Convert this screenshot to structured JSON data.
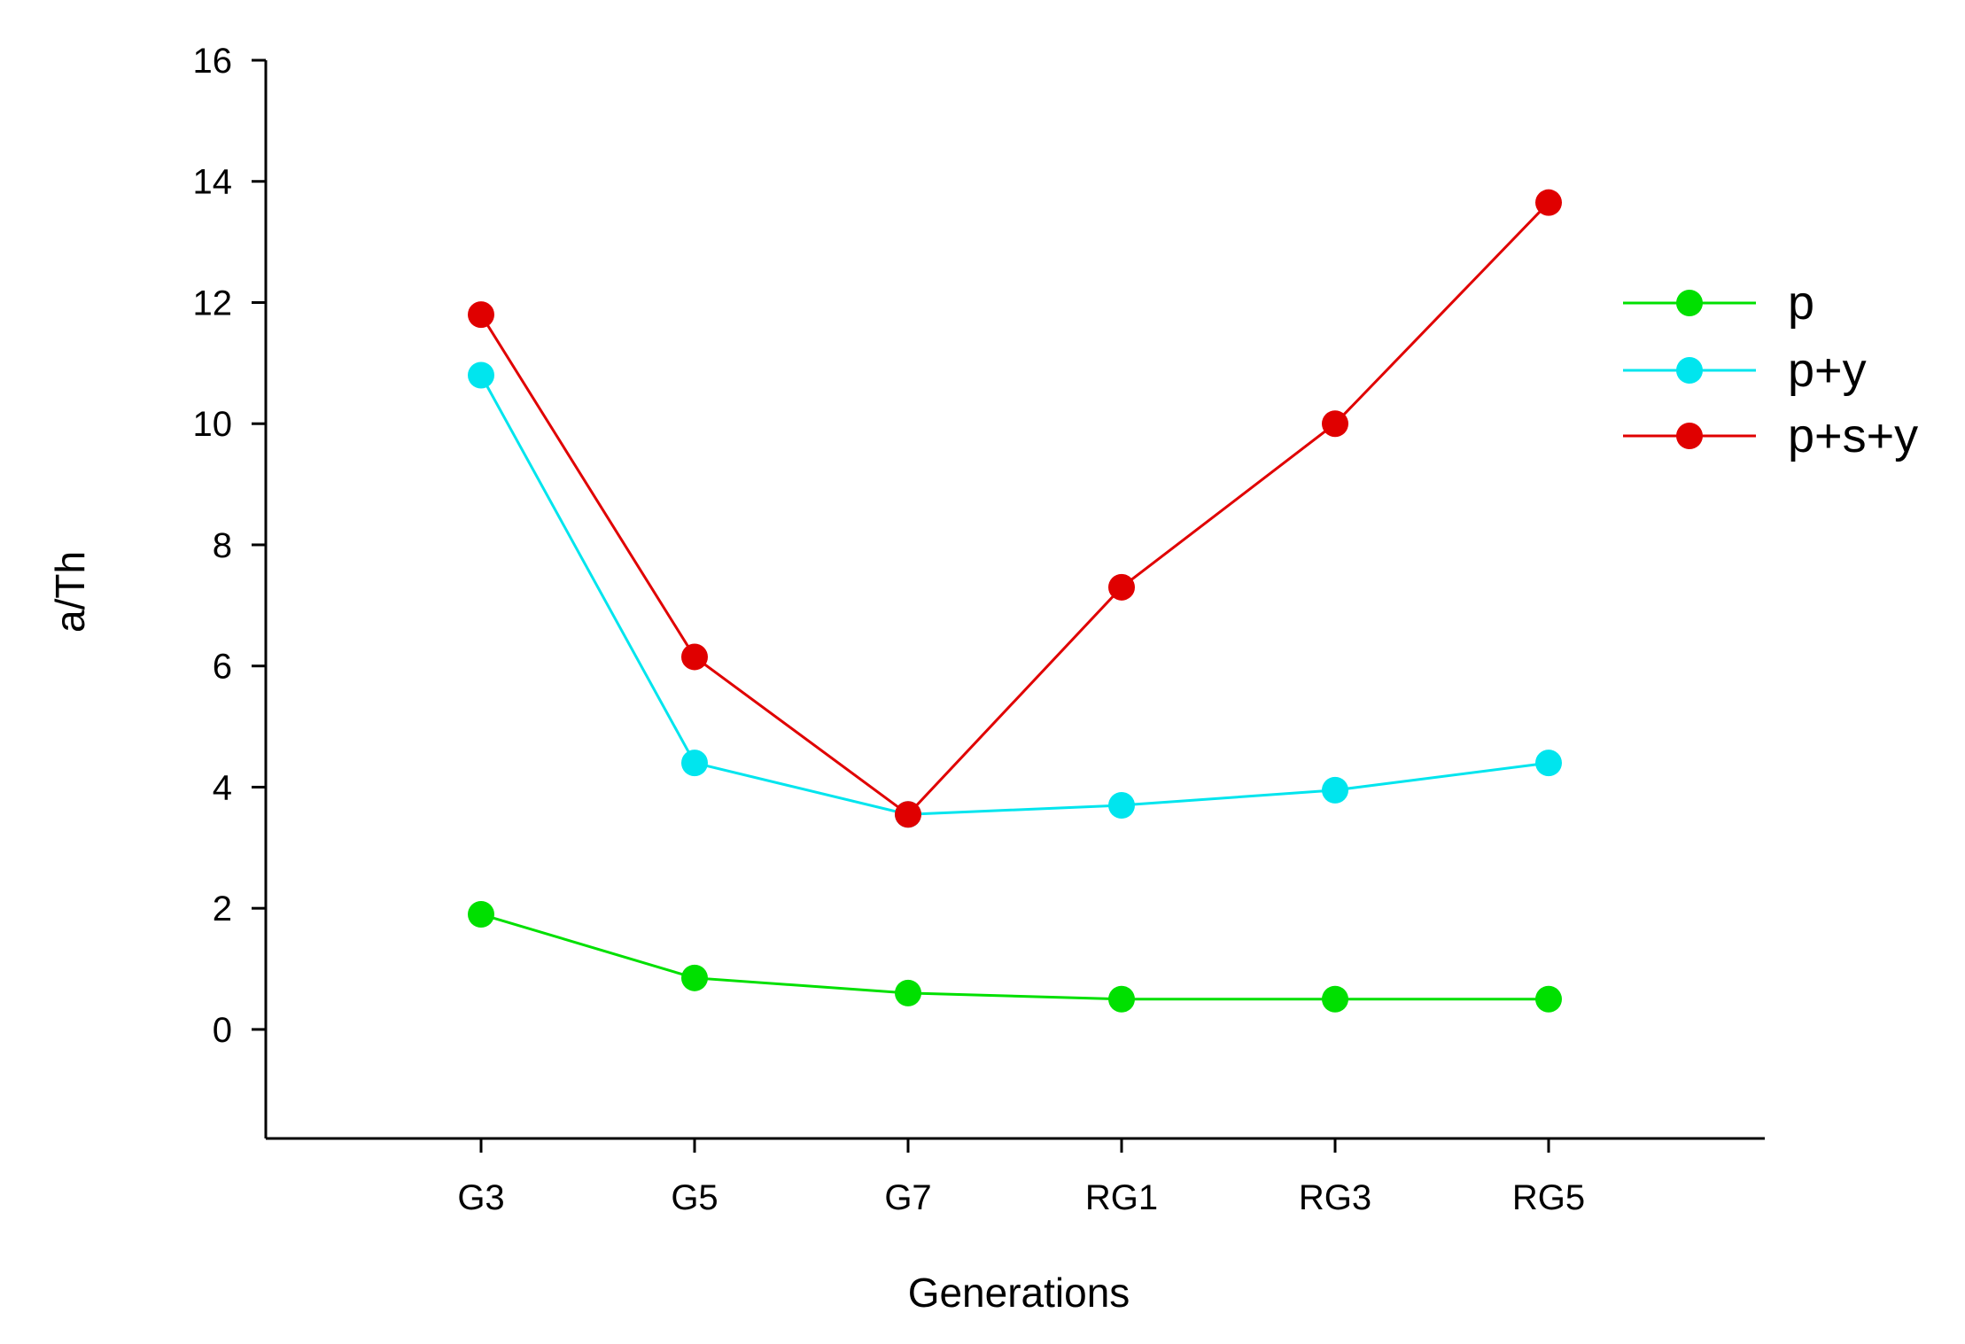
{
  "chart_data": {
    "type": "line",
    "title": "",
    "xlabel": "Generations",
    "ylabel": "a/Th",
    "categories": [
      "G3",
      "G5",
      "G7",
      "RG1",
      "RG3",
      "RG5"
    ],
    "ylim": [
      -1.8,
      16
    ],
    "yticks": [
      0,
      2,
      4,
      6,
      8,
      10,
      12,
      14,
      16
    ],
    "ytick_labels": [
      "0",
      "2",
      "4",
      "6",
      "8",
      "10",
      "12",
      "14",
      "16"
    ],
    "grid": false,
    "legend_position": "right",
    "series": [
      {
        "name": "p",
        "color": "#00e000",
        "values": [
          1.9,
          0.85,
          0.6,
          0.5,
          0.5,
          0.5
        ]
      },
      {
        "name": "p+y",
        "color": "#00e5ee",
        "values": [
          10.8,
          4.4,
          3.55,
          3.7,
          3.95,
          4.4
        ]
      },
      {
        "name": "p+s+y",
        "color": "#e00000",
        "values": [
          11.8,
          6.15,
          3.55,
          7.3,
          10.0,
          13.65
        ]
      }
    ]
  }
}
